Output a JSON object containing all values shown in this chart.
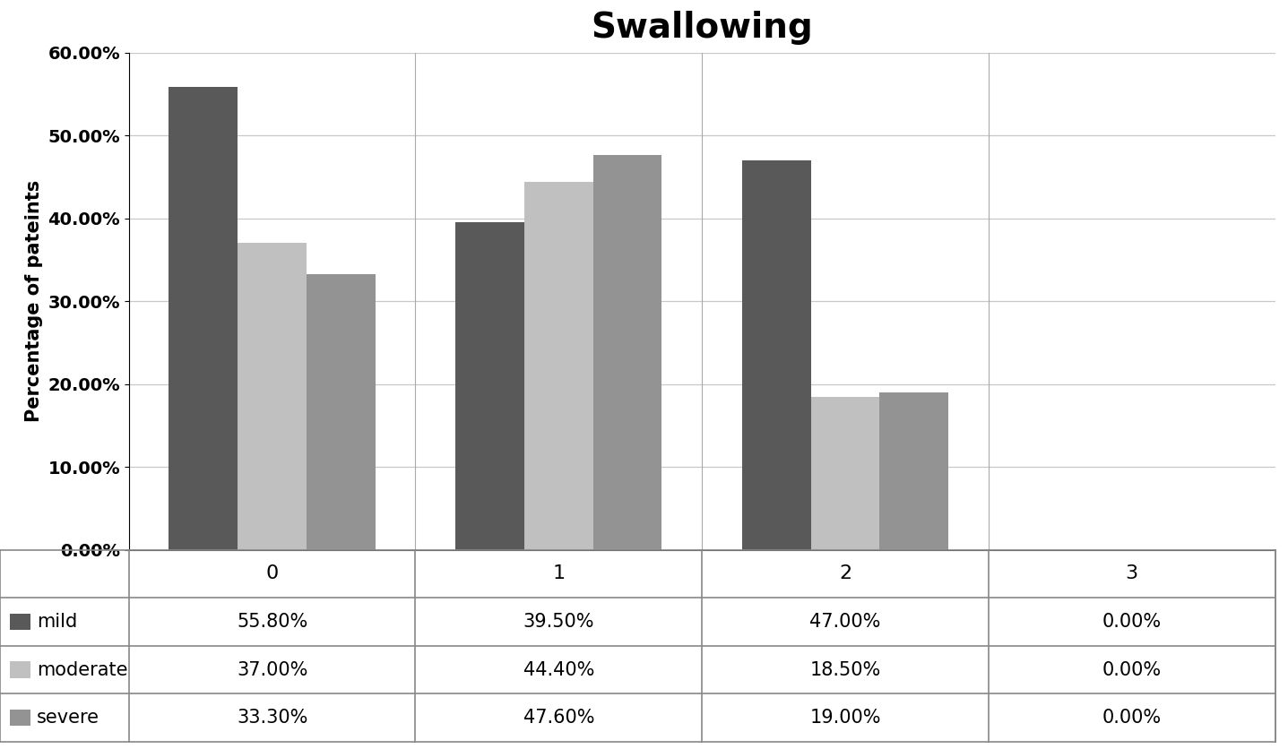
{
  "title": "Swallowing",
  "ylabel": "Percentage of pateints",
  "categories": [
    "0",
    "1",
    "2",
    "3"
  ],
  "series": {
    "mild": [
      55.8,
      39.5,
      47.0,
      0.0
    ],
    "moderate": [
      37.0,
      44.4,
      18.5,
      0.0
    ],
    "severe": [
      33.3,
      47.6,
      19.0,
      0.0
    ]
  },
  "colors": {
    "mild": "#595959",
    "moderate": "#c0c0c0",
    "severe": "#939393"
  },
  "ylim": [
    0,
    60
  ],
  "yticks": [
    0,
    10,
    20,
    30,
    40,
    50,
    60
  ],
  "ytick_labels": [
    "0.00%",
    "10.00%",
    "20.00%",
    "30.00%",
    "40.00%",
    "50.00%",
    "60.00%"
  ],
  "table_data": {
    "mild": [
      "55.80%",
      "39.50%",
      "47.00%",
      "0.00%"
    ],
    "moderate": [
      "37.00%",
      "44.40%",
      "18.50%",
      "0.00%"
    ],
    "severe": [
      "33.30%",
      "47.60%",
      "19.00%",
      "0.00%"
    ]
  },
  "background_color": "#ffffff",
  "grid_color": "#c8c8c8",
  "title_fontsize": 28,
  "axis_label_fontsize": 15,
  "tick_fontsize": 14,
  "table_fontsize": 15,
  "bar_width": 0.24
}
